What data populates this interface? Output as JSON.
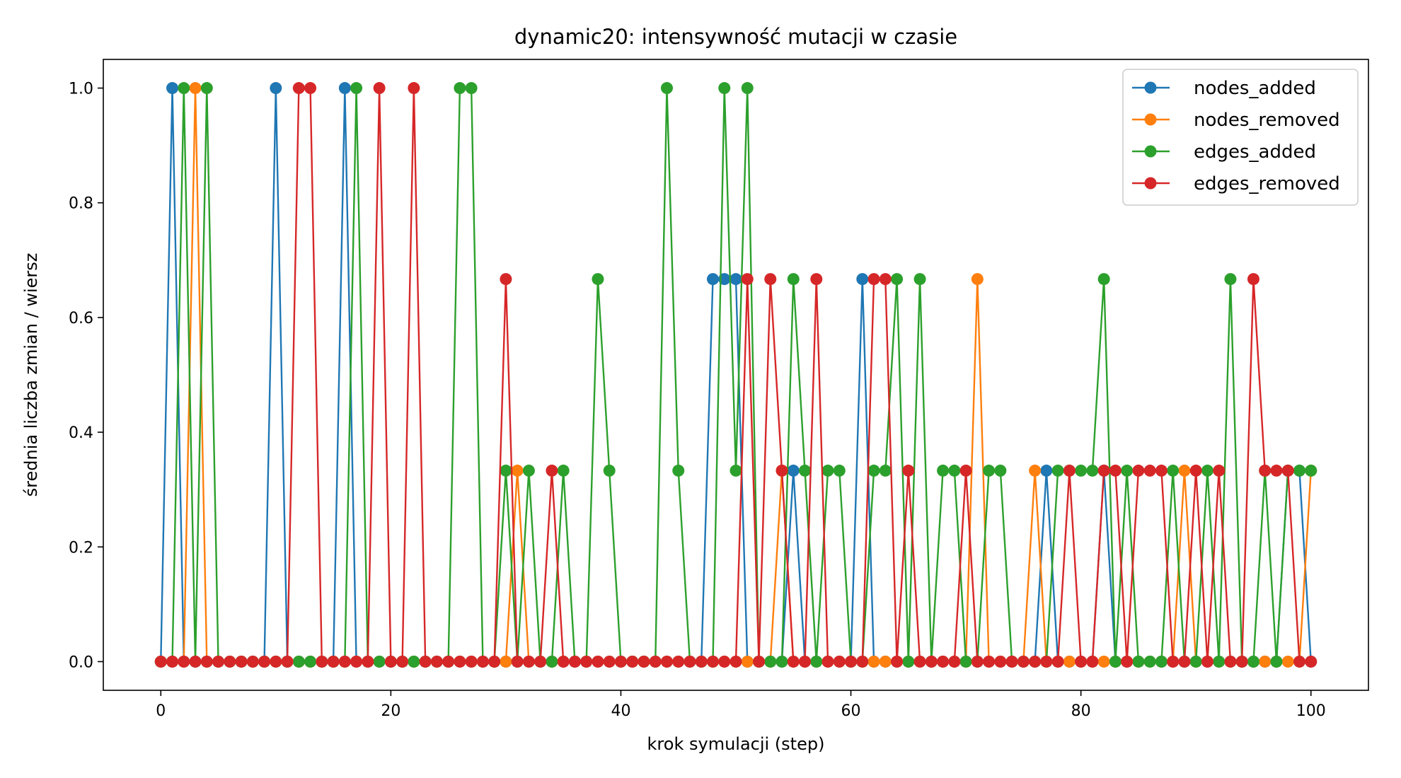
{
  "chart_data": {
    "type": "line",
    "title": "dynamic20: intensywność mutacji w czasie",
    "xlabel": "krok symulacji (step)",
    "ylabel": "średnia liczba zmian / wiersz",
    "xlim": [
      -5,
      105
    ],
    "ylim": [
      -0.05,
      1.05
    ],
    "xticks": [
      0,
      20,
      40,
      60,
      80,
      100
    ],
    "yticks": [
      0.0,
      0.2,
      0.4,
      0.6,
      0.8,
      1.0
    ],
    "xtick_labels": [
      "0",
      "20",
      "40",
      "60",
      "80",
      "100"
    ],
    "ytick_labels": [
      "0.0",
      "0.2",
      "0.4",
      "0.6",
      "0.8",
      "1.0"
    ],
    "grid": false,
    "legend_position": "top-right",
    "x_start": 0,
    "x_end": 100,
    "series": [
      {
        "name": "nodes_added",
        "color": "#1f77b4",
        "nonzero": [
          [
            1,
            1.0
          ],
          [
            10,
            1.0
          ],
          [
            16,
            1.0
          ],
          [
            48,
            0.667
          ],
          [
            49,
            0.667
          ],
          [
            50,
            0.667
          ],
          [
            55,
            0.333
          ],
          [
            61,
            0.667
          ],
          [
            77,
            0.333
          ],
          [
            82,
            0.333
          ],
          [
            98,
            0.333
          ],
          [
            99,
            0.333
          ]
        ]
      },
      {
        "name": "nodes_removed",
        "color": "#ff7f0e",
        "nonzero": [
          [
            3,
            1.0
          ],
          [
            31,
            0.333
          ],
          [
            54,
            0.333
          ],
          [
            71,
            0.667
          ],
          [
            76,
            0.333
          ],
          [
            89,
            0.333
          ],
          [
            100,
            0.333
          ]
        ]
      },
      {
        "name": "edges_added",
        "color": "#2ca02c",
        "nonzero": [
          [
            2,
            1.0
          ],
          [
            4,
            1.0
          ],
          [
            17,
            1.0
          ],
          [
            26,
            1.0
          ],
          [
            27,
            1.0
          ],
          [
            30,
            0.333
          ],
          [
            32,
            0.333
          ],
          [
            35,
            0.333
          ],
          [
            38,
            0.667
          ],
          [
            39,
            0.333
          ],
          [
            44,
            1.0
          ],
          [
            45,
            0.333
          ],
          [
            49,
            1.0
          ],
          [
            50,
            0.333
          ],
          [
            51,
            1.0
          ],
          [
            55,
            0.667
          ],
          [
            56,
            0.333
          ],
          [
            58,
            0.333
          ],
          [
            59,
            0.333
          ],
          [
            62,
            0.333
          ],
          [
            63,
            0.333
          ],
          [
            64,
            0.667
          ],
          [
            66,
            0.667
          ],
          [
            68,
            0.333
          ],
          [
            69,
            0.333
          ],
          [
            72,
            0.333
          ],
          [
            73,
            0.333
          ],
          [
            78,
            0.333
          ],
          [
            79,
            0.333
          ],
          [
            80,
            0.333
          ],
          [
            81,
            0.333
          ],
          [
            82,
            0.667
          ],
          [
            84,
            0.333
          ],
          [
            88,
            0.333
          ],
          [
            91,
            0.333
          ],
          [
            93,
            0.667
          ],
          [
            96,
            0.333
          ],
          [
            98,
            0.333
          ],
          [
            99,
            0.333
          ],
          [
            100,
            0.333
          ]
        ]
      },
      {
        "name": "edges_removed",
        "color": "#d62728",
        "nonzero": [
          [
            12,
            1.0
          ],
          [
            13,
            1.0
          ],
          [
            19,
            1.0
          ],
          [
            22,
            1.0
          ],
          [
            30,
            0.667
          ],
          [
            34,
            0.333
          ],
          [
            51,
            0.667
          ],
          [
            53,
            0.667
          ],
          [
            54,
            0.333
          ],
          [
            57,
            0.667
          ],
          [
            62,
            0.667
          ],
          [
            63,
            0.667
          ],
          [
            65,
            0.333
          ],
          [
            70,
            0.333
          ],
          [
            79,
            0.333
          ],
          [
            82,
            0.333
          ],
          [
            83,
            0.333
          ],
          [
            85,
            0.333
          ],
          [
            86,
            0.333
          ],
          [
            87,
            0.333
          ],
          [
            90,
            0.333
          ],
          [
            92,
            0.333
          ],
          [
            95,
            0.667
          ],
          [
            96,
            0.333
          ],
          [
            97,
            0.333
          ],
          [
            98,
            0.333
          ]
        ]
      }
    ]
  }
}
